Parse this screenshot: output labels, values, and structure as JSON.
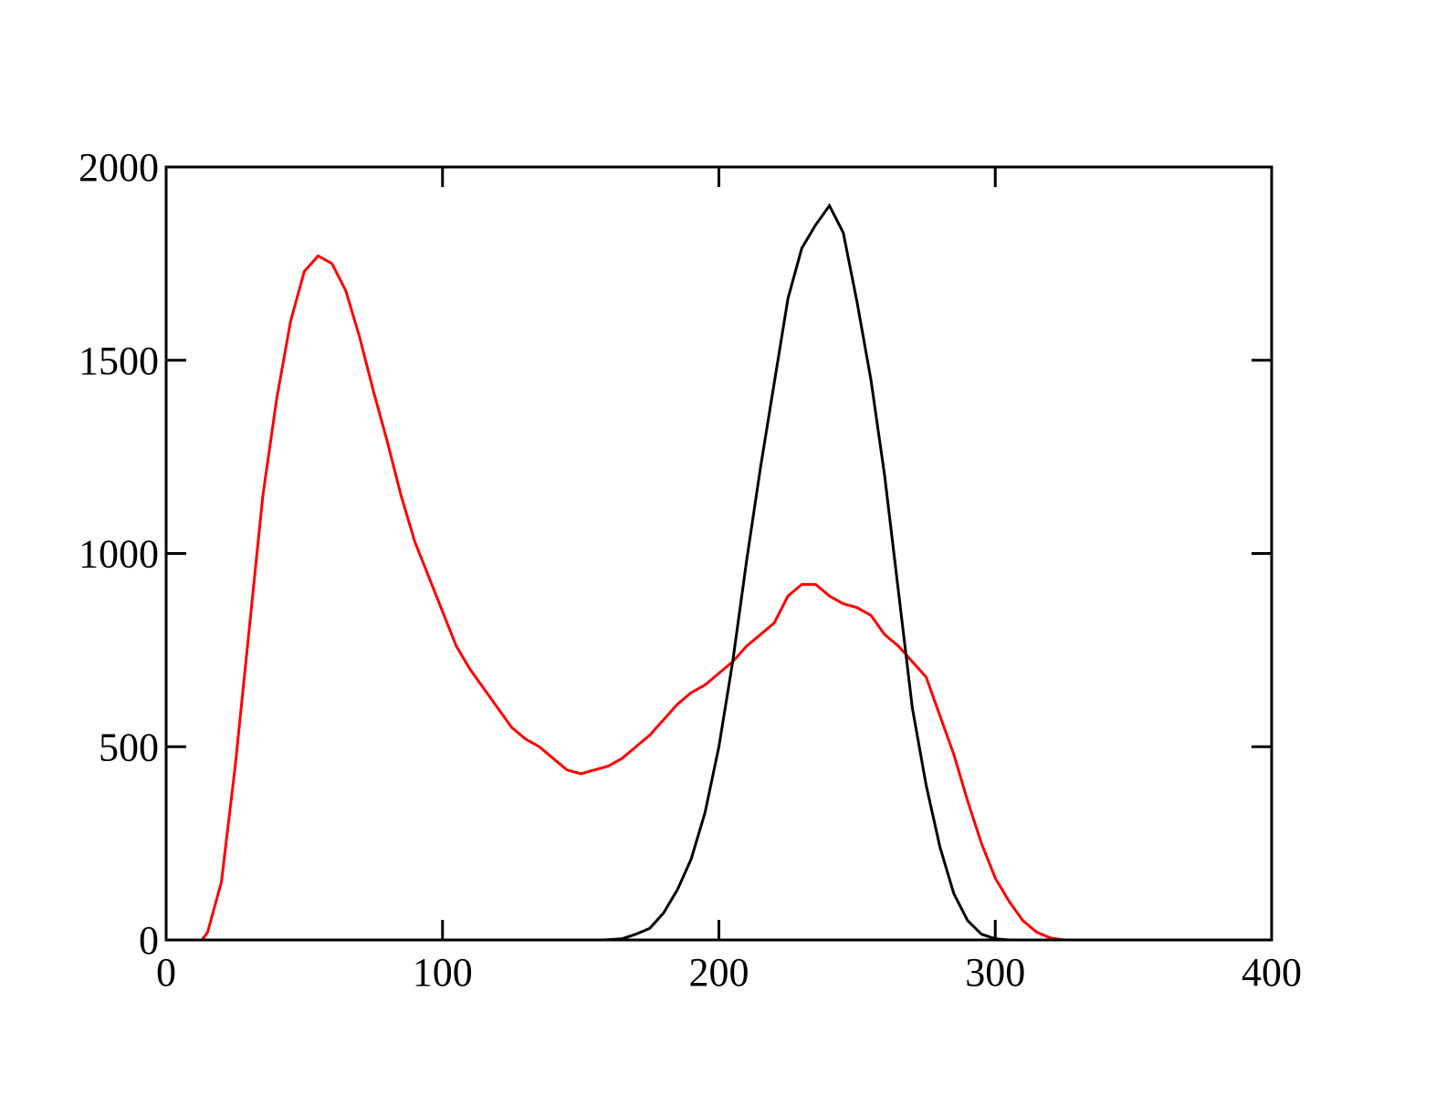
{
  "chart_data": {
    "type": "line",
    "xlim": [
      0,
      400
    ],
    "xticks": [
      0,
      100,
      200,
      300,
      400
    ],
    "ylim": [
      0,
      2000
    ],
    "yticks": [
      0,
      500,
      1000,
      1500,
      2000
    ],
    "series": [
      {
        "color": "#ff0000",
        "x": [
          13,
          15,
          20,
          25,
          30,
          35,
          40,
          45,
          50,
          55,
          60,
          65,
          70,
          75,
          80,
          85,
          90,
          95,
          100,
          105,
          110,
          115,
          120,
          125,
          130,
          135,
          140,
          145,
          150,
          155,
          160,
          165,
          170,
          175,
          180,
          185,
          190,
          195,
          200,
          205,
          210,
          215,
          220,
          225,
          230,
          235,
          240,
          245,
          250,
          255,
          260,
          265,
          270,
          275,
          280,
          285,
          290,
          295,
          300,
          305,
          310,
          315,
          320,
          325,
          330
        ],
        "values": [
          0,
          20,
          150,
          450,
          800,
          1150,
          1400,
          1600,
          1730,
          1770,
          1750,
          1680,
          1560,
          1420,
          1290,
          1150,
          1030,
          940,
          850,
          760,
          700,
          650,
          600,
          550,
          520,
          500,
          470,
          440,
          430,
          440,
          450,
          470,
          500,
          530,
          570,
          610,
          640,
          660,
          690,
          720,
          760,
          790,
          820,
          890,
          920,
          920,
          890,
          870,
          860,
          840,
          790,
          760,
          720,
          680,
          580,
          480,
          360,
          250,
          160,
          100,
          50,
          20,
          5,
          0,
          0
        ]
      },
      {
        "color": "#000000",
        "x": [
          158,
          165,
          170,
          175,
          180,
          185,
          190,
          195,
          200,
          205,
          210,
          215,
          220,
          225,
          230,
          235,
          240,
          245,
          250,
          255,
          260,
          265,
          270,
          275,
          280,
          285,
          290,
          295,
          300,
          305
        ],
        "values": [
          0,
          3,
          15,
          30,
          70,
          130,
          210,
          330,
          500,
          720,
          980,
          1220,
          1440,
          1660,
          1790,
          1850,
          1900,
          1830,
          1650,
          1450,
          1200,
          900,
          600,
          400,
          240,
          120,
          50,
          15,
          3,
          0
        ]
      }
    ]
  }
}
